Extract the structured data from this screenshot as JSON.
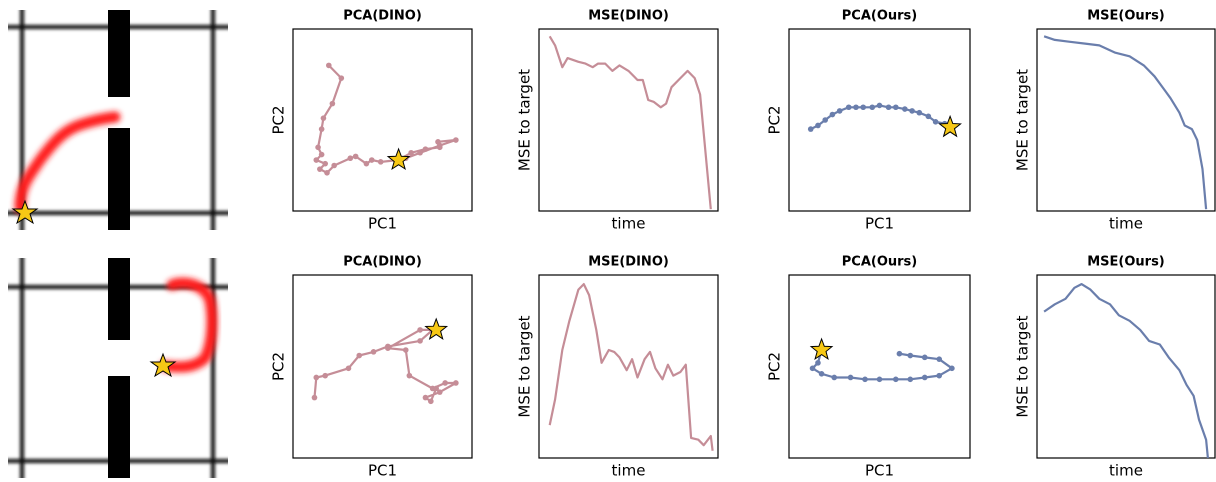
{
  "chart_data": [
    {
      "type": "line",
      "title": "PCA(DINO)",
      "xlabel": "PC1",
      "ylabel": "PC2",
      "color": "#c58d97",
      "markers": true,
      "xlim": [
        0,
        100
      ],
      "ylim": [
        0,
        100
      ],
      "x": [
        20,
        27,
        22,
        17,
        16,
        14,
        16,
        13,
        18,
        15,
        19,
        23,
        32,
        35,
        41,
        44,
        49,
        59,
        66,
        74,
        82,
        81,
        91,
        82,
        71,
        63
      ],
      "values": [
        80,
        73,
        59,
        51,
        45,
        35,
        31,
        28,
        26,
        23,
        21,
        25,
        29,
        30,
        26,
        28,
        27,
        28,
        32,
        34,
        35,
        38,
        39,
        36,
        32,
        29
      ],
      "star": {
        "x": 59,
        "y": 28
      }
    },
    {
      "type": "line",
      "title": "MSE(DINO)",
      "xlabel": "time",
      "ylabel": "MSE to target",
      "color": "#c58d97",
      "markers": false,
      "xlim": [
        0,
        100
      ],
      "ylim": [
        0,
        100
      ],
      "x": [
        6,
        9,
        13,
        16,
        22,
        26,
        30,
        33,
        37,
        41,
        45,
        50,
        55,
        58,
        61,
        64,
        68,
        71,
        74,
        79,
        83,
        87,
        90,
        96
      ],
      "values": [
        96,
        91,
        79,
        84,
        82,
        81,
        79,
        81,
        81,
        77,
        80,
        77,
        72,
        72,
        61,
        60,
        57,
        59,
        68,
        73,
        77,
        73,
        64,
        1
      ]
    },
    {
      "type": "line",
      "title": "PCA(Ours)",
      "xlabel": "PC1",
      "ylabel": "PC2",
      "color": "#6a7eac",
      "markers": true,
      "xlim": [
        0,
        100
      ],
      "ylim": [
        0,
        100
      ],
      "x": [
        12,
        16,
        20,
        24,
        28,
        33,
        37,
        41,
        46,
        50,
        55,
        59,
        64,
        68,
        72,
        77,
        81,
        86,
        89
      ],
      "values": [
        45,
        47,
        50,
        53,
        55,
        57,
        57,
        57,
        57,
        58,
        57,
        57,
        56,
        55,
        54,
        52,
        49,
        48,
        46
      ],
      "star": {
        "x": 89,
        "y": 46
      }
    },
    {
      "type": "line",
      "title": "MSE(Ours)",
      "xlabel": "time",
      "ylabel": "MSE to target",
      "color": "#6a7eac",
      "markers": false,
      "xlim": [
        0,
        100
      ],
      "ylim": [
        0,
        100
      ],
      "x": [
        4,
        10,
        18,
        27,
        35,
        44,
        52,
        60,
        66,
        72,
        75,
        80,
        83,
        87,
        90,
        93,
        95
      ],
      "values": [
        96,
        94,
        93,
        92,
        91,
        87,
        85,
        80,
        74,
        66,
        62,
        54,
        47,
        45,
        39,
        23,
        1
      ]
    },
    {
      "type": "line",
      "title": "PCA(DINO)",
      "xlabel": "PC1",
      "ylabel": "PC2",
      "color": "#c58d97",
      "markers": true,
      "xlim": [
        0,
        100
      ],
      "ylim": [
        0,
        100
      ],
      "x": [
        12,
        13,
        18,
        31,
        37,
        45,
        53,
        71,
        78,
        71,
        53,
        63,
        65,
        78,
        85,
        91,
        82,
        74,
        77,
        80
      ],
      "values": [
        33,
        44,
        45,
        49,
        56,
        58,
        61,
        64,
        70,
        70,
        60,
        59,
        45,
        38,
        41,
        41,
        36,
        33,
        31,
        38
      ],
      "star": {
        "x": 80,
        "y": 70
      }
    },
    {
      "type": "line",
      "title": "MSE(DINO)",
      "xlabel": "time",
      "ylabel": "MSE to target",
      "color": "#c58d97",
      "markers": false,
      "xlim": [
        0,
        100
      ],
      "ylim": [
        0,
        100
      ],
      "x": [
        6,
        9,
        13,
        17,
        22,
        25,
        28,
        32,
        35,
        39,
        42,
        45,
        49,
        52,
        55,
        59,
        62,
        65,
        69,
        72,
        75,
        79,
        82,
        85,
        89,
        92,
        96,
        97
      ],
      "values": [
        18,
        32,
        59,
        75,
        92,
        95,
        89,
        70,
        52,
        59,
        58,
        55,
        48,
        54,
        44,
        54,
        58,
        49,
        43,
        51,
        45,
        47,
        51,
        11,
        10,
        7,
        12,
        4
      ]
    },
    {
      "type": "line",
      "title": "PCA(Ours)",
      "xlabel": "PC1",
      "ylabel": "PC2",
      "color": "#6a7eac",
      "markers": true,
      "xlim": [
        0,
        100
      ],
      "ylim": [
        0,
        100
      ],
      "x": [
        61,
        67,
        75,
        83,
        90,
        83,
        75,
        67,
        59,
        50,
        42,
        34,
        25,
        18,
        13,
        16,
        18
      ],
      "values": [
        57,
        56,
        55,
        54,
        49,
        45,
        44,
        43,
        43,
        43,
        43,
        44,
        44,
        46,
        49,
        52,
        59
      ],
      "star": {
        "x": 18,
        "y": 59
      }
    },
    {
      "type": "line",
      "title": "MSE(Ours)",
      "xlabel": "time",
      "ylabel": "MSE to target",
      "color": "#6a7eac",
      "markers": false,
      "xlim": [
        0,
        100
      ],
      "ylim": [
        0,
        100
      ],
      "x": [
        4,
        10,
        16,
        21,
        25,
        30,
        35,
        41,
        46,
        52,
        58,
        63,
        69,
        74,
        80,
        84,
        88,
        91,
        95,
        96
      ],
      "values": [
        80,
        84,
        87,
        93,
        95,
        92,
        87,
        84,
        78,
        75,
        70,
        64,
        62,
        55,
        48,
        40,
        34,
        21,
        10,
        0
      ]
    }
  ]
}
